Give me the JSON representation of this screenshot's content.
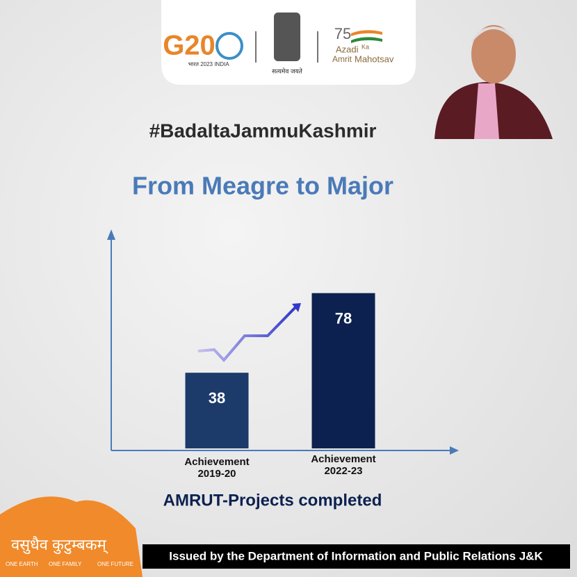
{
  "header": {
    "g20": "G20",
    "g20_sub": "भारत 2023 INDIA",
    "emblem_motto": "सत्यमेव जयते",
    "azadi_75": "75",
    "azadi": "Azadi",
    "ka": "Ka",
    "amrit": "Amrit",
    "mahotsav": "Mahotsav"
  },
  "hashtag": "#BadaltaJammuKashmir",
  "chart_data": {
    "type": "bar",
    "title": "From Meagre to Major",
    "subtitle": "AMRUT-Projects completed",
    "categories": [
      "Achievement\n2019-20",
      "Achievement\n2022-23"
    ],
    "values": [
      38,
      78
    ],
    "colors": [
      "#1c3a6a",
      "#0c2150"
    ],
    "ylim": [
      0,
      110
    ]
  },
  "footer": {
    "motto": "वसुधैव कुटुम्बकम्",
    "tags": [
      "ONE EARTH",
      "ONE FAMILY",
      "ONE FUTURE"
    ],
    "issued": "Issued by the Department of Information and Public Relations J&K"
  }
}
